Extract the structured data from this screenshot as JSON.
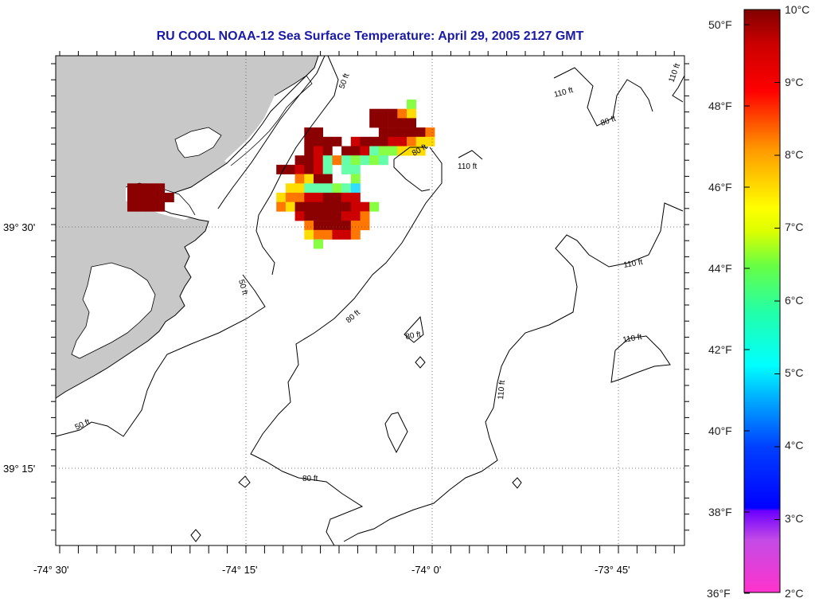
{
  "title": "RU COOL  NOAA-12  Sea Surface Temperature:  April 29, 2005 2127 GMT",
  "map": {
    "lon_labels": [
      "-74° 30'",
      "-74° 15'",
      "-74° 0'",
      "-73° 45'"
    ],
    "lat_labels": [
      "39° 30'",
      "39° 15'"
    ],
    "land_color": "#c8c8c8",
    "contour_labels": [
      "50 ft",
      "50 ft",
      "50 ft",
      "80 ft",
      "80 ft",
      "80 ft",
      "80 ft",
      "80 ft",
      "110 ft",
      "110 ft",
      "110 ft",
      "110 ft",
      "110 ft",
      "110 ft"
    ]
  },
  "colorbar": {
    "fahrenheit_labels": [
      "50°F",
      "48°F",
      "46°F",
      "44°F",
      "42°F",
      "40°F",
      "38°F",
      "36°F"
    ],
    "celsius_labels": [
      "10°C",
      "9°C",
      "8°C",
      "7°C",
      "6°C",
      "5°C",
      "4°C",
      "3°C",
      "2°C"
    ],
    "colors": [
      "#ff33cc",
      "#6b00ff",
      "#0000ff",
      "#00c8ff",
      "#00ffcc",
      "#66ff33",
      "#ffff00",
      "#ff8800",
      "#ff0000",
      "#aa0000",
      "#7a0000"
    ]
  },
  "sst_pixels": {
    "colors": {
      "D": "#8b0000",
      "R": "#cc0000",
      "O": "#ff7700",
      "Y": "#ffdd00",
      "G": "#88ff44",
      "A": "#66ffaa",
      "C": "#33ddff"
    }
  }
}
